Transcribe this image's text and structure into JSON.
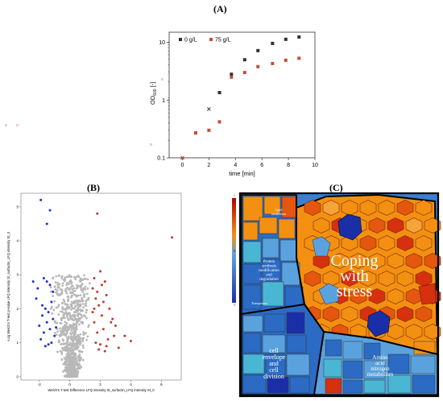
{
  "panels": {
    "a_label": "(A)",
    "b_label": "(B)",
    "c_label": "(C)"
  },
  "chart_data": [
    {
      "type": "scatter",
      "panel": "A",
      "ylabel_main": "OD",
      "ylabel_sub": "600",
      "ylabel_tail": " [-]",
      "xlabel": "time [min]",
      "xlim": [
        -1,
        10
      ],
      "ylim": [
        0.1,
        15
      ],
      "yscale": "log",
      "xticks": [
        "0",
        "2",
        "4",
        "6",
        "8",
        "10"
      ],
      "yticks": [
        "0.1",
        "1",
        "10"
      ],
      "legend_position": "top",
      "series": [
        {
          "name": "0 g/L",
          "color": "#303030",
          "x": [
            0,
            1,
            2,
            2.8,
            3.7,
            4.7,
            5.7,
            6.8,
            7.8,
            8.8
          ],
          "y": [
            0.1,
            0.27,
            0.7,
            1.35,
            2.8,
            5.0,
            7.2,
            9.6,
            11.3,
            12.4
          ]
        },
        {
          "name": "75 g/L",
          "color": "#c0503a",
          "x": [
            0,
            1,
            2,
            2.8,
            3.7,
            4.7,
            5.7,
            6.8,
            7.8,
            8.8
          ],
          "y": [
            0.1,
            0.27,
            0.3,
            0.42,
            2.5,
            3.0,
            3.8,
            4.3,
            4.9,
            5.3
          ]
        }
      ]
    },
    {
      "type": "scatter",
      "panel": "B",
      "xlabel": "Welch's T-test Difference LFQ intensity St_surfactin_LFQ intensity St_0",
      "ylabel": "-Log Welch's T-test p-value LFQ intensity St_surfactin_LFQ intensity St_0",
      "xticks": [
        "-2",
        "0",
        "2",
        "4",
        "6"
      ],
      "yticks": [
        "0",
        "1",
        "2",
        "3",
        "4",
        "5"
      ],
      "xlim": [
        -3.2,
        7.3
      ],
      "ylim": [
        -0.1,
        5.4
      ],
      "groups": [
        {
          "name": "down",
          "color": "#1f2fd0",
          "x": [
            -1.9,
            -1.7,
            -1.5,
            -1.3,
            -1.2,
            -2.1,
            -1.6,
            -1.4,
            -1.8,
            -1.1,
            -1.5,
            -2.0,
            -1.3,
            -1.7,
            -1.2,
            -1.9,
            -1.4,
            -1.6,
            -1.0,
            -2.2,
            -1.8,
            -1.1,
            -1.5,
            -1.3,
            -2.4,
            -0.9
          ],
          "y": [
            5.2,
            2.9,
            2.8,
            2.7,
            2.2,
            2.6,
            2.0,
            1.9,
            1.8,
            1.7,
            1.6,
            1.5,
            1.4,
            1.3,
            1.0,
            1.1,
            0.95,
            0.9,
            1.2,
            2.3,
            2.1,
            2.5,
            4.5,
            4.9,
            2.8,
            1.45
          ]
        },
        {
          "name": "up",
          "color": "#c0392b",
          "x": [
            2.0,
            1.6,
            2.3,
            1.5,
            1.8,
            2.4,
            1.7,
            2.2,
            1.9,
            2.6,
            1.5,
            2.1,
            2.8,
            1.6,
            3.0,
            2.2,
            1.8,
            3.6,
            2.5,
            4.0,
            1.7,
            2.0,
            2.4,
            3.2,
            1.9,
            2.7,
            2.1,
            1.6,
            2.9,
            6.7,
            1.8,
            2.3
          ],
          "y": [
            3.1,
            2.9,
            2.8,
            2.6,
            2.5,
            2.4,
            2.3,
            2.2,
            2.1,
            2.0,
            1.9,
            1.8,
            1.7,
            1.6,
            1.5,
            1.4,
            1.3,
            1.2,
            1.1,
            1.05,
            1.0,
            0.95,
            0.9,
            0.85,
            0.8,
            1.6,
            2.7,
            2.0,
            1.2,
            4.1,
            4.8,
            0.75
          ]
        }
      ],
      "background_color": "#b8b8b8"
    }
  ],
  "treemap": {
    "title": "Coping with stress",
    "title_lines": [
      "Coping",
      "with",
      "stress"
    ],
    "labels": {
      "cell_envelope": [
        "cell",
        "envelope",
        "and",
        "cell",
        "division"
      ],
      "amino": [
        "Amino",
        "acid",
        "nitrogen",
        "metabolism"
      ],
      "protein": [
        "Protein",
        "synthesis",
        "modification",
        "and",
        "degradation"
      ],
      "small_top": [
        "Lipid",
        "metabolism"
      ],
      "small_mid": [
        "Transporters"
      ],
      "scale_top": "1",
      "scale_mid": "0",
      "scale_bot": "-1"
    },
    "colors": {
      "orange": "#f39012",
      "dark_orange": "#e5560f",
      "red": "#d6300e",
      "blue": "#2b6bc4",
      "navy": "#1a2fa7",
      "light_blue": "#5aa2dd",
      "cyan": "#49b7d4"
    }
  }
}
